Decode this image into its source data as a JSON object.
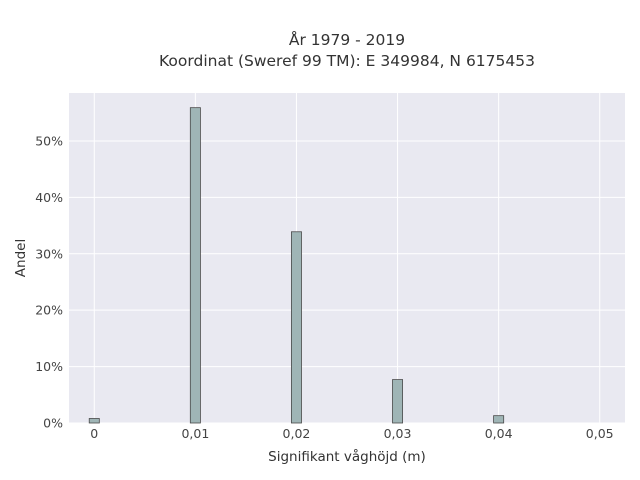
{
  "chart_data": {
    "type": "bar",
    "title": [
      "År 1979 - 2019",
      "Koordinat (Sweref 99 TM): E 349984, N 6175453"
    ],
    "xlabel": "Signifikant våghöjd (m)",
    "ylabel": "Andel",
    "x_ticks": [
      0,
      0.01,
      0.02,
      0.03,
      0.04,
      0.05
    ],
    "x_tick_labels": [
      "0",
      "0,01",
      "0,02",
      "0,03",
      "0,04",
      "0,05"
    ],
    "y_ticks": [
      0,
      10,
      20,
      30,
      40,
      50
    ],
    "y_tick_labels": [
      "0%",
      "10%",
      "20%",
      "30%",
      "40%",
      "50%"
    ],
    "xlim": [
      -0.0025,
      0.0525
    ],
    "ylim": [
      0,
      58.5
    ],
    "bar_width": 0.001,
    "x": [
      0,
      0.01,
      0.02,
      0.03,
      0.04
    ],
    "values": [
      0.8,
      55.9,
      33.9,
      7.7,
      1.3
    ],
    "grid": true,
    "colors": {
      "bar_fill": "#9fb5b6",
      "bar_stroke": "#4a4a4a",
      "plot_background": "#e9e9f1",
      "grid": "#ffffff"
    }
  }
}
